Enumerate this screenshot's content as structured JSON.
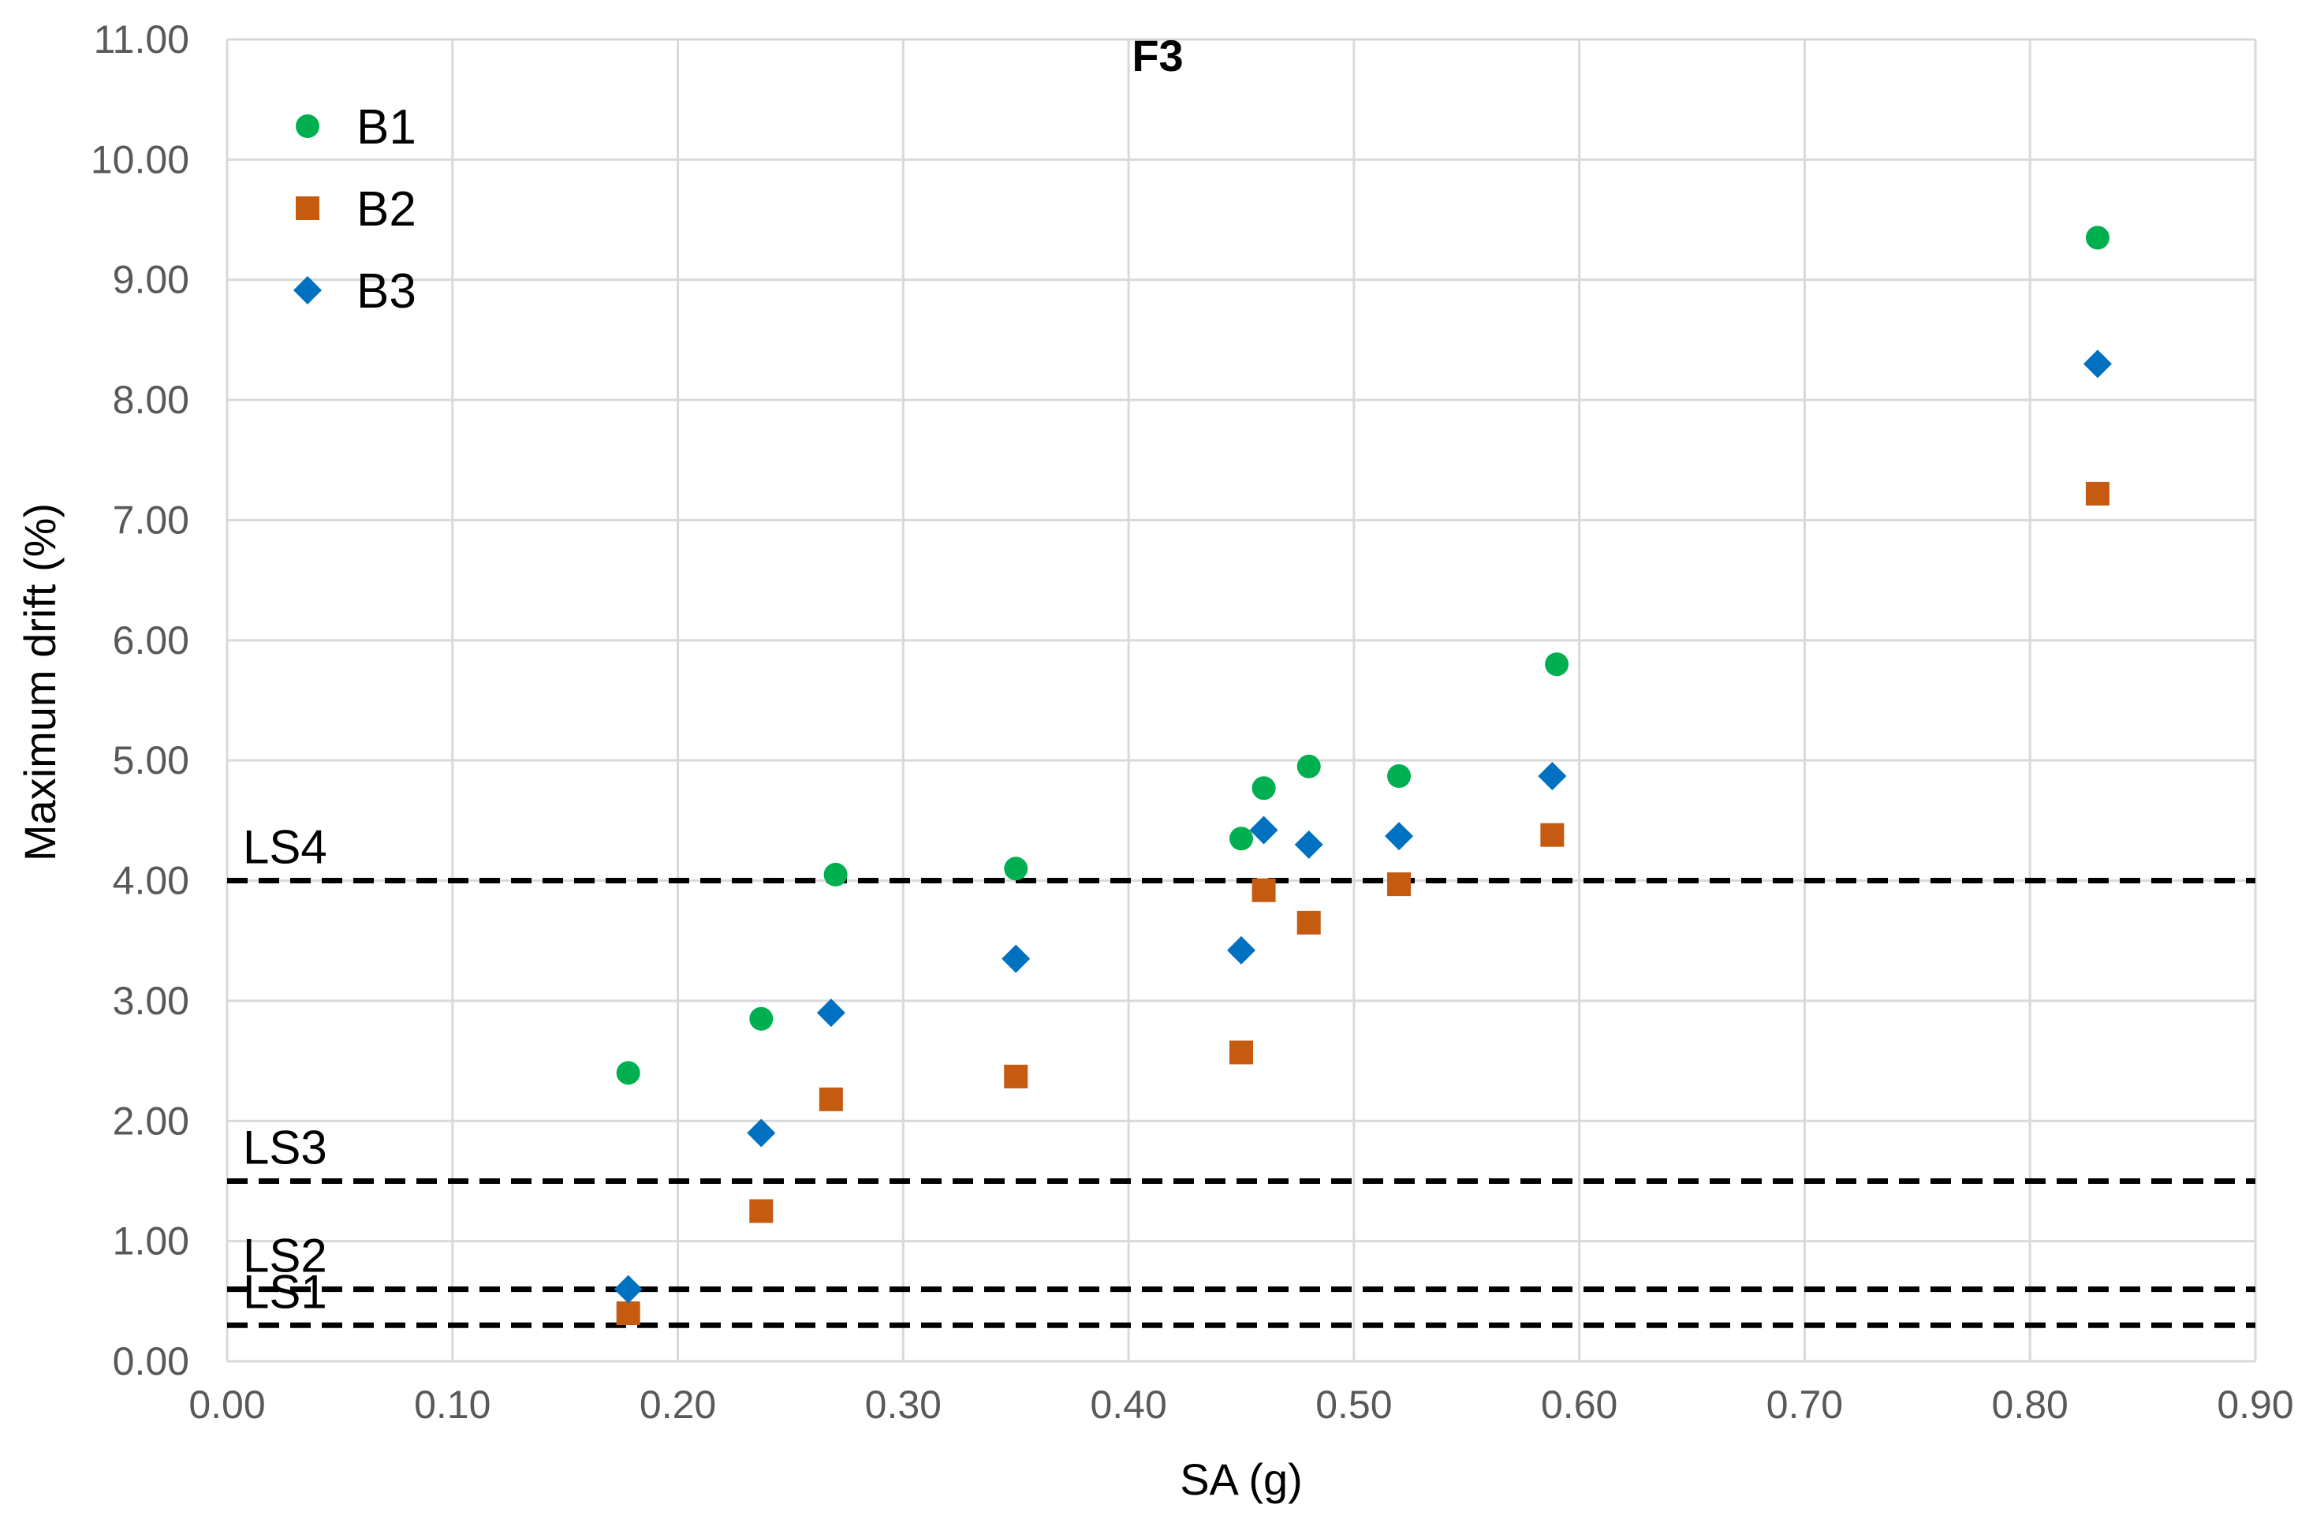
{
  "chart_data": {
    "type": "scatter",
    "title": "F3",
    "xlabel": "SA (g)",
    "ylabel": "Maximum drift (%)",
    "xlim": [
      0,
      0.9
    ],
    "ylim": [
      0,
      11
    ],
    "x_ticks": [
      "0.00",
      "0.10",
      "0.20",
      "0.30",
      "0.40",
      "0.50",
      "0.60",
      "0.70",
      "0.80",
      "0.90"
    ],
    "y_ticks": [
      "0.00",
      "1.00",
      "2.00",
      "3.00",
      "4.00",
      "5.00",
      "6.00",
      "7.00",
      "8.00",
      "9.00",
      "10.00",
      "11.00"
    ],
    "grid": true,
    "legend_position": "top-left",
    "series": [
      {
        "name": "B1",
        "marker": "circle",
        "color": "#00b050",
        "points": [
          [
            0.178,
            2.4
          ],
          [
            0.237,
            2.85
          ],
          [
            0.27,
            4.05
          ],
          [
            0.35,
            4.1
          ],
          [
            0.45,
            4.35
          ],
          [
            0.46,
            4.77
          ],
          [
            0.48,
            4.95
          ],
          [
            0.52,
            4.87
          ],
          [
            0.59,
            5.8
          ],
          [
            0.83,
            9.35
          ]
        ]
      },
      {
        "name": "B2",
        "marker": "square",
        "color": "#c55a11",
        "points": [
          [
            0.178,
            0.4
          ],
          [
            0.237,
            1.25
          ],
          [
            0.268,
            2.18
          ],
          [
            0.35,
            2.37
          ],
          [
            0.45,
            2.57
          ],
          [
            0.46,
            3.92
          ],
          [
            0.48,
            3.65
          ],
          [
            0.52,
            3.97
          ],
          [
            0.588,
            4.38
          ],
          [
            0.83,
            7.22
          ]
        ]
      },
      {
        "name": "B3",
        "marker": "diamond",
        "color": "#0070c0",
        "points": [
          [
            0.178,
            0.6
          ],
          [
            0.237,
            1.9
          ],
          [
            0.268,
            2.9
          ],
          [
            0.35,
            3.35
          ],
          [
            0.45,
            3.42
          ],
          [
            0.46,
            4.42
          ],
          [
            0.48,
            4.3
          ],
          [
            0.52,
            4.37
          ],
          [
            0.588,
            4.87
          ],
          [
            0.83,
            8.3
          ]
        ]
      }
    ],
    "reference_lines": [
      {
        "label": "LS4",
        "y": 4.0
      },
      {
        "label": "LS3",
        "y": 1.5
      },
      {
        "label": "LS2",
        "y": 0.6
      },
      {
        "label": "LS1",
        "y": 0.3
      }
    ]
  }
}
